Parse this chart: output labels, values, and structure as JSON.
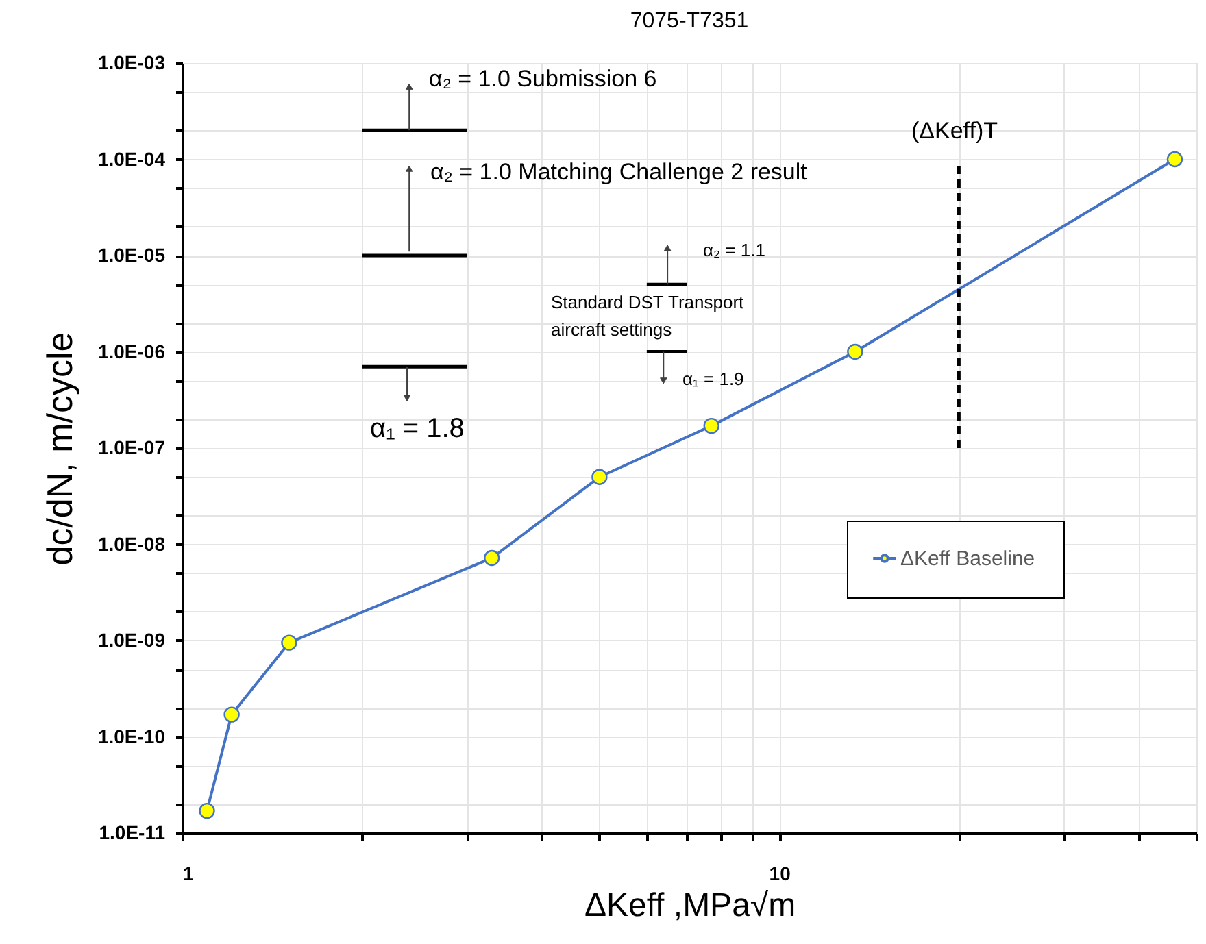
{
  "chart_data": {
    "type": "line",
    "title": "7075-T7351",
    "xlabel": "ΔKeff ,MPa√m",
    "ylabel": "dc/dN, m/cycle",
    "log": "xy",
    "grid": true,
    "legend": "right",
    "xlim": [
      1,
      50
    ],
    "ylim": [
      1e-11,
      0.001
    ],
    "xticks": [
      1,
      {
        "value": 2,
        "label": null
      },
      {
        "value": 3,
        "label": null
      },
      {
        "value": 4,
        "label": null
      },
      {
        "value": 5,
        "label": null
      },
      {
        "value": 6,
        "label": null
      },
      {
        "value": 7,
        "label": null
      },
      {
        "value": 8,
        "label": null
      },
      {
        "value": 9,
        "label": null
      },
      10,
      {
        "value": 20,
        "label": null
      },
      {
        "value": 30,
        "label": null
      },
      {
        "value": 40,
        "label": null
      },
      {
        "value": 50,
        "label": null
      }
    ],
    "yticks": [
      {
        "value": 1e-11,
        "label": "1.0E-11"
      },
      {
        "value": 2e-11,
        "label": null
      },
      {
        "value": 5e-11,
        "label": null
      },
      {
        "value": 1e-10,
        "label": "1.0E-10"
      },
      {
        "value": 2e-10,
        "label": null
      },
      {
        "value": 5e-10,
        "label": null
      },
      {
        "value": 1e-09,
        "label": "1.0E-09"
      },
      {
        "value": 2e-09,
        "label": null
      },
      {
        "value": 5e-09,
        "label": null
      },
      {
        "value": 1e-08,
        "label": "1.0E-08"
      },
      {
        "value": 2e-08,
        "label": null
      },
      {
        "value": 5e-08,
        "label": null
      },
      {
        "value": 1e-07,
        "label": "1.0E-07"
      },
      {
        "value": 2e-07,
        "label": null
      },
      {
        "value": 5e-07,
        "label": null
      },
      {
        "value": 1e-06,
        "label": "1.0E-06"
      },
      {
        "value": 2e-06,
        "label": null
      },
      {
        "value": 5e-06,
        "label": null
      },
      {
        "value": 1e-05,
        "label": "1.0E-05"
      },
      {
        "value": 2e-05,
        "label": null
      },
      {
        "value": 5e-05,
        "label": null
      },
      {
        "value": 0.0001,
        "label": "1.0E-04"
      },
      {
        "value": 0.0002,
        "label": null
      },
      {
        "value": 0.0005,
        "label": null
      },
      {
        "value": 0.001,
        "label": "1.0E-03"
      }
    ],
    "series": [
      {
        "name": "ΔKeff Baseline",
        "color": "#4472c4",
        "marker": "circle",
        "line_style": "solid",
        "colors": [
          "#ffff00",
          "#ffff00",
          "#ffff00",
          "#ffff00",
          "#ffff00",
          "#ffff00",
          "#ffff00",
          "#ffff00"
        ],
        "x": [
          1.1,
          1.21,
          1.51,
          3.3,
          5.0,
          7.7,
          13.4,
          46
        ],
        "values": [
          1.7e-11,
          1.7e-10,
          9.5e-10,
          7.2e-09,
          5e-08,
          1.7e-07,
          1e-06,
          0.0001
        ]
      },
      {
        "color": "#000000",
        "marker": "none",
        "line_style": "solid",
        "x": [
          2,
          3
        ],
        "values": [
          0.0002,
          0.0002
        ]
      },
      {
        "color": "#000000",
        "marker": "none",
        "line_style": "solid",
        "x": [
          2,
          3
        ],
        "values": [
          1e-05,
          1e-05
        ]
      },
      {
        "color": "#000000",
        "marker": "none",
        "line_style": "solid",
        "x": [
          2,
          3
        ],
        "values": [
          7e-07,
          7e-07
        ]
      },
      {
        "color": "#000000",
        "marker": "none",
        "line_style": "solid",
        "x": [
          6,
          7
        ],
        "values": [
          5e-06,
          5e-06
        ]
      },
      {
        "color": "#000000",
        "marker": "none",
        "line_style": "solid",
        "x": [
          6,
          7
        ],
        "values": [
          1e-06,
          1e-06
        ]
      },
      {
        "color": "#404040",
        "marker": "triangle",
        "line_style": "solid",
        "x": [
          2.4,
          2.4
        ],
        "values": [
          0.0002,
          0.00057
        ]
      },
      {
        "color": "#404040",
        "marker": "triangle",
        "line_style": "solid",
        "x": [
          2.4,
          2.4
        ],
        "values": [
          1.1e-05,
          8e-05
        ]
      },
      {
        "color": "#404040",
        "marker": "triangle",
        "line_style": "solid",
        "x": [
          2.38,
          2.38
        ],
        "values": [
          7e-07,
          3.3e-07
        ]
      },
      {
        "color": "#404040",
        "marker": "triangle",
        "line_style": "solid",
        "x": [
          6.5,
          6.5
        ],
        "values": [
          5e-06,
          1.2e-05
        ]
      },
      {
        "color": "#404040",
        "marker": "triangle",
        "line_style": "solid",
        "x": [
          6.4,
          6.4
        ],
        "values": [
          1e-06,
          5e-07
        ]
      },
      {
        "color": "#000000",
        "marker": "none",
        "line_style": "dashed",
        "x": [
          20,
          20
        ],
        "values": [
          1e-07,
          9e-05
        ]
      }
    ],
    "annotations": [
      "α₂ = 1.0 Submission 6",
      "α₂ = 1.0 Matching Challenge 2 result",
      "α₂ = 1.1",
      "Standard DST Transport\naircraft settings",
      "α₁ = 1.9",
      "α₁ = 1.8",
      "(ΔKeff)T"
    ]
  }
}
